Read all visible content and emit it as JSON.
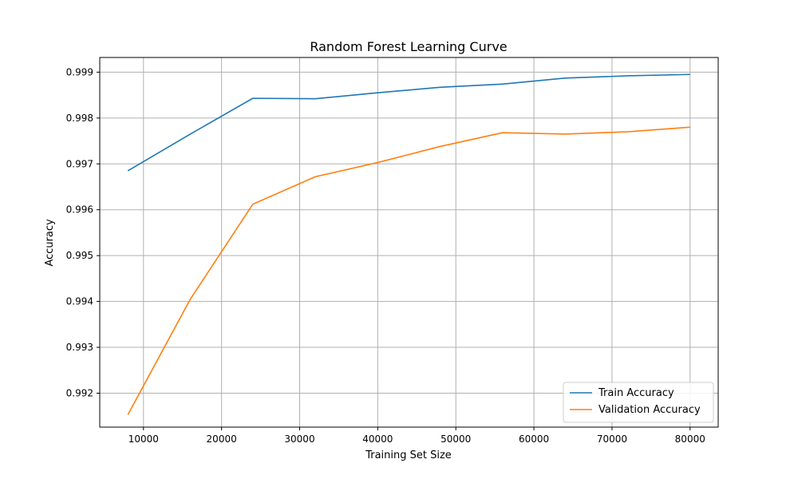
{
  "chart_data": {
    "type": "line",
    "title": "Random Forest Learning Curve",
    "xlabel": "Training Set Size",
    "ylabel": "Accuracy",
    "xlim": [
      4400,
      83600
    ],
    "ylim": [
      0.99126,
      0.99932
    ],
    "xticks": [
      10000,
      20000,
      30000,
      40000,
      50000,
      60000,
      70000,
      80000
    ],
    "yticks": [
      0.992,
      0.993,
      0.994,
      0.995,
      0.996,
      0.997,
      0.998,
      0.999
    ],
    "grid": true,
    "legend_position": "lower-right",
    "x": [
      8000,
      16000,
      24000,
      32000,
      40000,
      48000,
      56000,
      64000,
      72000,
      80000
    ],
    "series": [
      {
        "name": "Train Accuracy",
        "color": "#1f77b4",
        "values": [
          0.99685,
          0.99765,
          0.99843,
          0.99842,
          0.99855,
          0.99867,
          0.99874,
          0.99887,
          0.99892,
          0.99895
        ]
      },
      {
        "name": "Validation Accuracy",
        "color": "#ff7f0e",
        "values": [
          0.99153,
          0.99405,
          0.99612,
          0.99672,
          0.99703,
          0.99738,
          0.99768,
          0.99765,
          0.9977,
          0.9978
        ]
      }
    ]
  }
}
